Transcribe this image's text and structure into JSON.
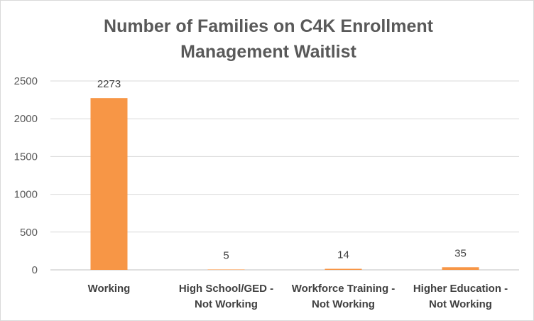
{
  "chart_data": {
    "type": "bar",
    "title_lines": [
      "Number of Families on C4K Enrollment",
      "Management Waitlist"
    ],
    "categories": [
      [
        "Working"
      ],
      [
        "High School/GED -",
        "Not Working"
      ],
      [
        "Workforce Training -",
        "Not Working"
      ],
      [
        "Higher Education -",
        "Not Working"
      ]
    ],
    "values": [
      2273,
      5,
      14,
      35
    ],
    "ylim": [
      0,
      2500
    ],
    "yticks": [
      "0",
      "500",
      "1000",
      "1500",
      "2000",
      "2500"
    ],
    "grid": true,
    "legend": "none",
    "bar_color": "#f79646"
  }
}
